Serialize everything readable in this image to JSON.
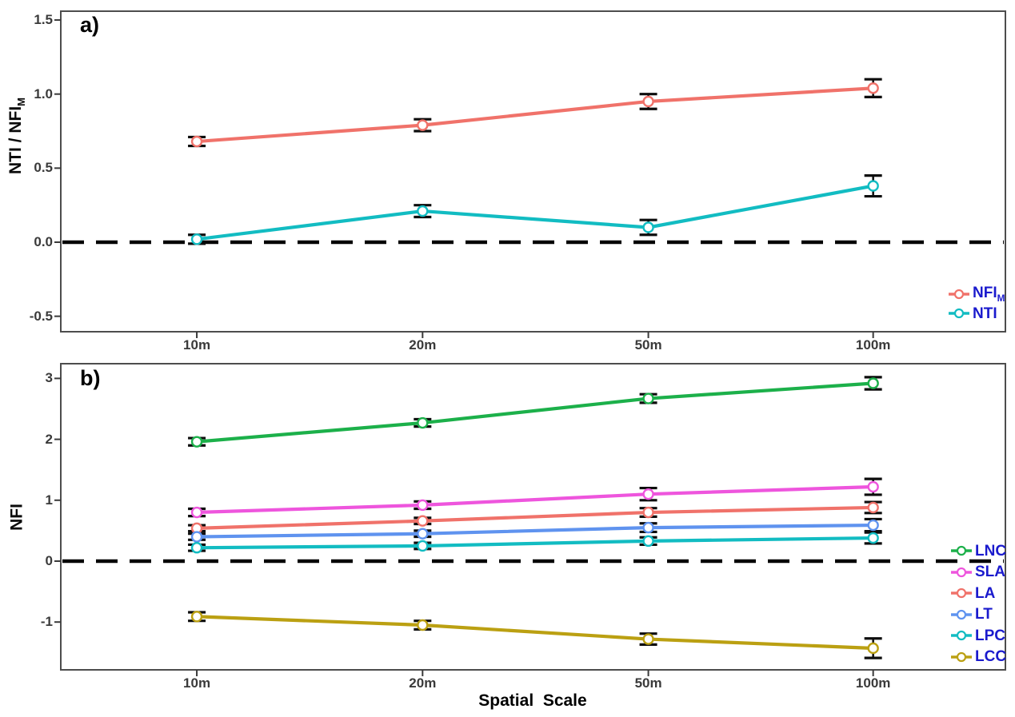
{
  "figure": {
    "background": "#ffffff",
    "border_color": "#4d4d4d",
    "axis_text_color": "#3a3a3a",
    "legend_text_color": "#1a1acd",
    "zero_line_color": "#000000",
    "error_bar_color": "#0d0d0d"
  },
  "chart_data": [
    {
      "panel": "a)",
      "type": "line",
      "categories": [
        "10m",
        "20m",
        "50m",
        "100m"
      ],
      "xlabel": "",
      "ylabel_main": "NTI / NFI",
      "ylabel_sub": "M",
      "yticks": [
        "1.5",
        "1.0",
        "0.5",
        "0.0",
        "-0.5"
      ],
      "ylim": [
        -0.6,
        1.56
      ],
      "grid": false,
      "zero_reference_line": true,
      "error_bars": true,
      "legend_position": "inside-bottom-right",
      "series": [
        {
          "name_main": "NFI",
          "name_sub": "M",
          "color": "#f0726a",
          "values": [
            0.68,
            0.79,
            0.95,
            1.04
          ],
          "errors": [
            0.03,
            0.04,
            0.05,
            0.06
          ]
        },
        {
          "name_main": "NTI",
          "name_sub": "",
          "color": "#12bcc2",
          "values": [
            0.02,
            0.21,
            0.1,
            0.38
          ],
          "errors": [
            0.03,
            0.04,
            0.05,
            0.07
          ]
        }
      ]
    },
    {
      "panel": "b)",
      "type": "line",
      "categories": [
        "10m",
        "20m",
        "50m",
        "100m"
      ],
      "xlabel": "Spatial  Scale",
      "ylabel_main": "NFI",
      "ylabel_sub": "",
      "yticks": [
        "3",
        "2",
        "1",
        "0",
        "-1"
      ],
      "ylim": [
        -1.78,
        3.24
      ],
      "grid": false,
      "zero_reference_line": true,
      "error_bars": true,
      "legend_position": "inside-right",
      "series": [
        {
          "name_main": "LNC",
          "name_sub": "",
          "color": "#1cb04a",
          "values": [
            1.96,
            2.27,
            2.67,
            2.92
          ],
          "errors": [
            0.06,
            0.06,
            0.07,
            0.1
          ]
        },
        {
          "name_main": "SLA",
          "name_sub": "",
          "color": "#ee55dd",
          "values": [
            0.8,
            0.92,
            1.1,
            1.22
          ],
          "errors": [
            0.06,
            0.06,
            0.1,
            0.13
          ]
        },
        {
          "name_main": "LA",
          "name_sub": "",
          "color": "#f0726a",
          "values": [
            0.54,
            0.66,
            0.8,
            0.88
          ],
          "errors": [
            0.05,
            0.05,
            0.07,
            0.09
          ]
        },
        {
          "name_main": "LT",
          "name_sub": "",
          "color": "#5f93ef",
          "values": [
            0.4,
            0.45,
            0.55,
            0.59
          ],
          "errors": [
            0.05,
            0.05,
            0.07,
            0.1
          ]
        },
        {
          "name_main": "LPC",
          "name_sub": "",
          "color": "#12bcc2",
          "values": [
            0.22,
            0.25,
            0.33,
            0.38
          ],
          "errors": [
            0.05,
            0.05,
            0.06,
            0.09
          ]
        },
        {
          "name_main": "LCC",
          "name_sub": "",
          "color": "#bba012",
          "values": [
            -0.91,
            -1.05,
            -1.28,
            -1.43
          ],
          "errors": [
            0.07,
            0.07,
            0.09,
            0.16
          ]
        }
      ]
    }
  ]
}
